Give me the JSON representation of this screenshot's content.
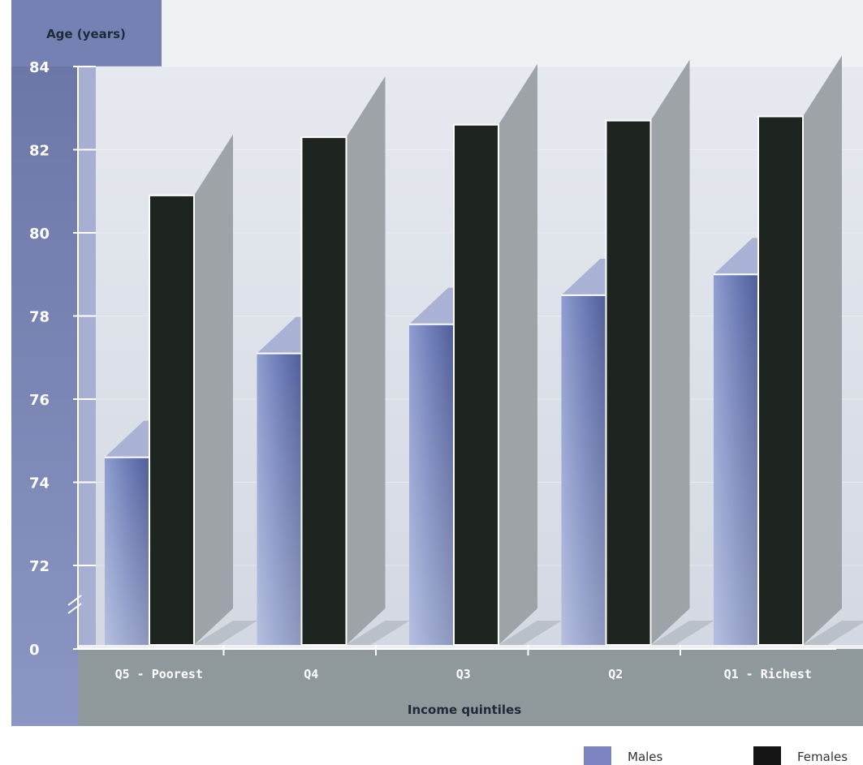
{
  "chart_data": {
    "type": "bar",
    "ylabel": "Age (years)",
    "xlabel": "Income quintiles",
    "categories": [
      "Q5 - Poorest",
      "Q4",
      "Q3",
      "Q2",
      "Q1 - Richest"
    ],
    "y_ticks": [
      "0",
      "72",
      "74",
      "76",
      "78",
      "80",
      "82",
      "84"
    ],
    "ylim": [
      70,
      84
    ],
    "axis_break": true,
    "series": [
      {
        "name": "Males",
        "values": [
          74.6,
          77.1,
          77.8,
          78.5,
          79.0
        ]
      },
      {
        "name": "Females",
        "values": [
          80.9,
          82.3,
          82.6,
          82.7,
          82.8
        ]
      }
    ],
    "colors": {
      "Males": "#6d7db5",
      "Females": "#1e241f",
      "plot_bg": "#dde2ea",
      "axis_bar": "#7b86b4",
      "floor": "#9aa4a6"
    },
    "grid": true,
    "legend_position": "bottom-right"
  }
}
